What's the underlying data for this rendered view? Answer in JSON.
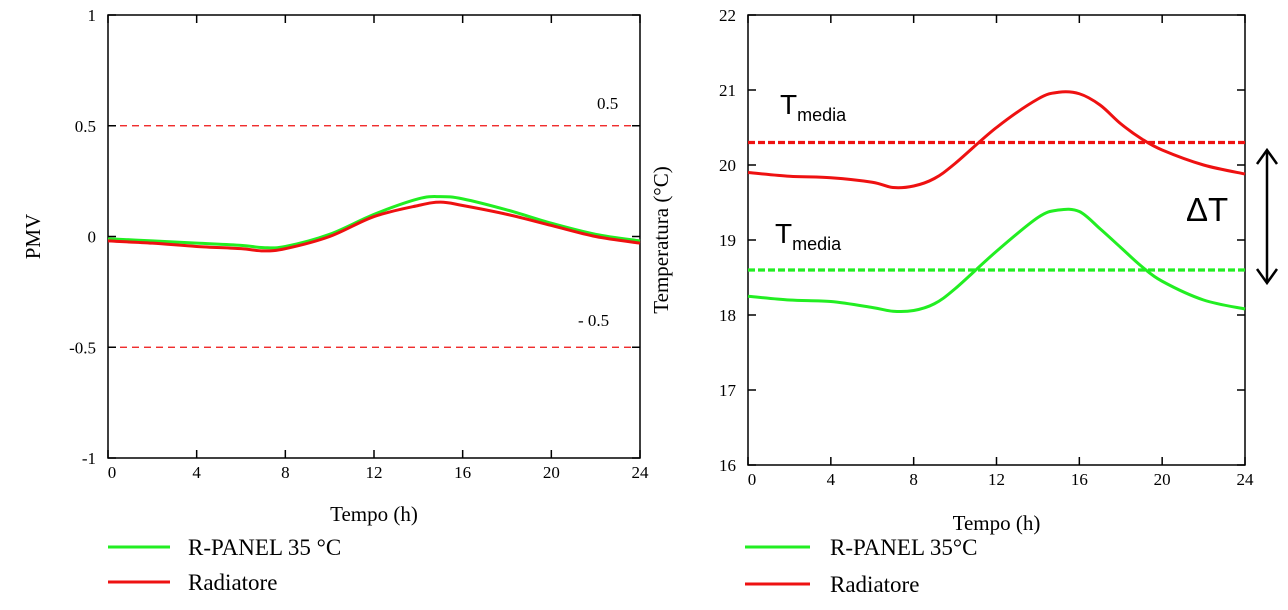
{
  "colors": {
    "green": "#22ee22",
    "red": "#ee1111",
    "axis": "#000000"
  },
  "chart_data": [
    {
      "type": "line",
      "xlabel": "Tempo (h)",
      "ylabel": "PMV",
      "xlim": [
        0,
        24
      ],
      "ylim": [
        -1,
        1
      ],
      "x_ticks": [
        "0",
        "4",
        "8",
        "12",
        "16",
        "20",
        "24"
      ],
      "y_ticks": [
        "-1",
        "-0.5",
        "0",
        "0.5",
        "1"
      ],
      "grid": false,
      "annotations": [
        "0.5",
        "- 0.5"
      ],
      "reference_lines": [
        {
          "y": 0.5,
          "color": "#ee1111",
          "style": "dashed"
        },
        {
          "y": -0.5,
          "color": "#ee1111",
          "style": "dashed"
        }
      ],
      "series": [
        {
          "name": "R-PANEL 35 °C",
          "color": "#22ee22",
          "x": [
            0,
            2,
            4,
            6,
            7,
            8,
            10,
            12,
            14,
            15,
            16,
            18,
            20,
            22,
            24
          ],
          "y": [
            -0.01,
            -0.02,
            -0.03,
            -0.04,
            -0.05,
            -0.045,
            0.01,
            0.1,
            0.17,
            0.18,
            0.17,
            0.12,
            0.06,
            0.01,
            -0.02
          ]
        },
        {
          "name": "Radiatore",
          "color": "#ee1111",
          "x": [
            0,
            2,
            4,
            6,
            7,
            8,
            10,
            12,
            14,
            15,
            16,
            18,
            20,
            22,
            24
          ],
          "y": [
            -0.02,
            -0.03,
            -0.045,
            -0.055,
            -0.065,
            -0.055,
            0.0,
            0.09,
            0.14,
            0.155,
            0.14,
            0.1,
            0.05,
            0.0,
            -0.03
          ]
        }
      ],
      "legend": [
        {
          "label": "R-PANEL 35 °C",
          "color": "#22ee22"
        },
        {
          "label": "Radiatore",
          "color": "#ee1111"
        }
      ]
    },
    {
      "type": "line",
      "xlabel": "Tempo (h)",
      "ylabel": "Temperatura (°C)",
      "xlim": [
        0,
        24
      ],
      "ylim": [
        16,
        22
      ],
      "x_ticks": [
        "0",
        "4",
        "8",
        "12",
        "16",
        "20",
        "24"
      ],
      "y_ticks": [
        "16",
        "17",
        "18",
        "19",
        "20",
        "21",
        "22"
      ],
      "grid": false,
      "annotations": [
        {
          "main": "T",
          "sub": "media",
          "color": "#ee1111"
        },
        {
          "main": "T",
          "sub": "media",
          "color": "#22ee22"
        },
        {
          "main": "ΔT"
        }
      ],
      "reference_lines": [
        {
          "y": 20.3,
          "color": "#ee1111",
          "style": "dotted",
          "label": "Tmedia"
        },
        {
          "y": 18.6,
          "color": "#22ee22",
          "style": "dotted",
          "label": "Tmedia"
        }
      ],
      "series": [
        {
          "name": "R-PANEL 35°C",
          "color": "#22ee22",
          "x": [
            0,
            2,
            4,
            6,
            7,
            8,
            9,
            10,
            12,
            14,
            15,
            16,
            17,
            18,
            19,
            20,
            22,
            24
          ],
          "y": [
            18.25,
            18.2,
            18.18,
            18.1,
            18.05,
            18.06,
            18.15,
            18.35,
            18.85,
            19.3,
            19.4,
            19.38,
            19.15,
            18.9,
            18.65,
            18.45,
            18.2,
            18.08
          ]
        },
        {
          "name": "Radiatore",
          "color": "#ee1111",
          "x": [
            0,
            2,
            4,
            6,
            7,
            8,
            9,
            10,
            12,
            14,
            15,
            16,
            17,
            18,
            19,
            20,
            22,
            24
          ],
          "y": [
            19.9,
            19.85,
            19.83,
            19.77,
            19.7,
            19.72,
            19.82,
            20.02,
            20.5,
            20.88,
            20.97,
            20.95,
            20.8,
            20.55,
            20.35,
            20.2,
            20.0,
            19.88
          ]
        }
      ],
      "legend": [
        {
          "label": "R-PANEL 35°C",
          "color": "#22ee22"
        },
        {
          "label": "Radiatore",
          "color": "#ee1111"
        }
      ]
    }
  ]
}
